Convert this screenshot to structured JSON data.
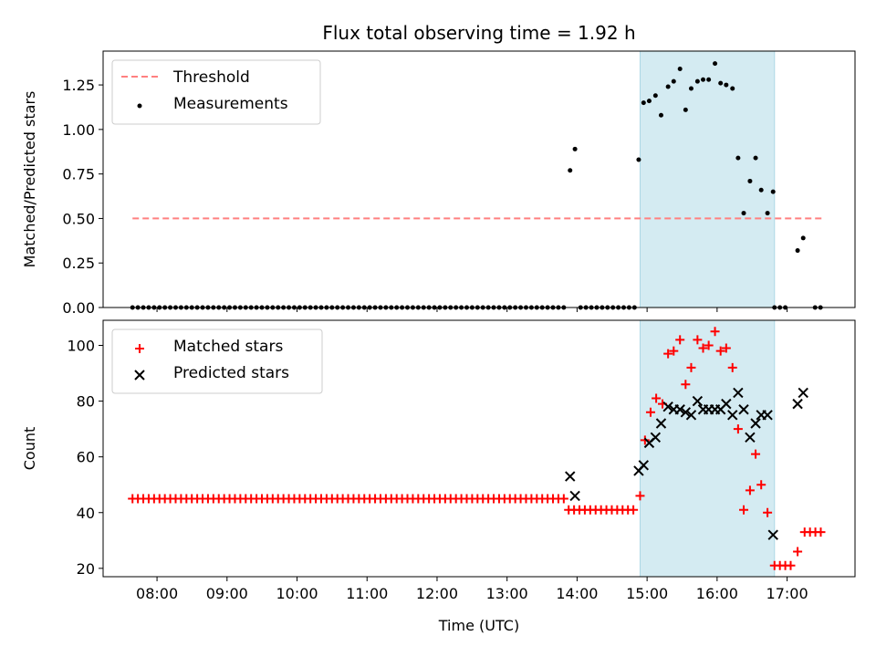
{
  "chart_data": {
    "title": "Flux total observing time = 1.92 h",
    "xlabel": "Time (UTC)",
    "x_unit": "hours UTC",
    "xlim": [
      7.23,
      17.97
    ],
    "x_ticks": [
      8,
      9,
      10,
      11,
      12,
      13,
      14,
      15,
      16,
      17
    ],
    "x_tick_labels": [
      "08:00",
      "09:00",
      "10:00",
      "11:00",
      "12:00",
      "13:00",
      "14:00",
      "15:00",
      "16:00",
      "17:00"
    ],
    "highlight_span": [
      14.9,
      16.82
    ],
    "highlight_color": "#add8e6",
    "panels": [
      {
        "type": "scatter",
        "ylabel": "Matched/Predicted stars",
        "ylim": [
          0,
          1.44
        ],
        "y_ticks": [
          0,
          0.25,
          0.5,
          0.75,
          1.0,
          1.25
        ],
        "y_tick_labels": [
          "0.00",
          "0.25",
          "0.50",
          "0.75",
          "1.00",
          "1.25"
        ],
        "legend_position": "upper-left",
        "threshold": {
          "name": "Threshold",
          "value": 0.5,
          "x_range": [
            7.65,
            17.5
          ],
          "color": "#ff8080",
          "style": "dashed"
        },
        "series": [
          {
            "name": "Measurements",
            "marker": "dot",
            "color": "#000000",
            "zero_segments": [
              [
                7.65,
                13.83
              ],
              [
                14.05,
                14.82
              ],
              [
                16.82,
                17.05
              ],
              [
                17.4,
                17.5
              ]
            ],
            "points": [
              [
                13.9,
                0.77
              ],
              [
                13.97,
                0.89
              ],
              [
                14.88,
                0.83
              ],
              [
                14.95,
                1.15
              ],
              [
                15.03,
                1.16
              ],
              [
                15.12,
                1.19
              ],
              [
                15.2,
                1.08
              ],
              [
                15.3,
                1.24
              ],
              [
                15.38,
                1.27
              ],
              [
                15.47,
                1.34
              ],
              [
                15.55,
                1.11
              ],
              [
                15.63,
                1.23
              ],
              [
                15.72,
                1.27
              ],
              [
                15.8,
                1.28
              ],
              [
                15.88,
                1.28
              ],
              [
                15.97,
                1.37
              ],
              [
                16.05,
                1.26
              ],
              [
                16.13,
                1.25
              ],
              [
                16.22,
                1.23
              ],
              [
                16.3,
                0.84
              ],
              [
                16.38,
                0.53
              ],
              [
                16.47,
                0.71
              ],
              [
                16.55,
                0.84
              ],
              [
                16.63,
                0.66
              ],
              [
                16.72,
                0.53
              ],
              [
                16.8,
                0.65
              ],
              [
                17.15,
                0.32
              ],
              [
                17.23,
                0.39
              ]
            ]
          }
        ]
      },
      {
        "type": "scatter",
        "ylabel": "Count",
        "ylim": [
          17,
          109
        ],
        "y_ticks": [
          20,
          40,
          60,
          80,
          100
        ],
        "y_tick_labels": [
          "20",
          "40",
          "60",
          "80",
          "100"
        ],
        "legend_position": "upper-left",
        "series": [
          {
            "name": "Matched stars",
            "marker": "plus",
            "color": "#ff0000",
            "constant_runs": [
              [
                7.65,
                13.83,
                45
              ],
              [
                13.88,
                14.82,
                41
              ],
              [
                16.82,
                17.08,
                21
              ],
              [
                17.25,
                17.5,
                33
              ]
            ],
            "points": [
              [
                14.9,
                46
              ],
              [
                14.97,
                66
              ],
              [
                15.05,
                76
              ],
              [
                15.13,
                81
              ],
              [
                15.22,
                79
              ],
              [
                15.3,
                97
              ],
              [
                15.38,
                98
              ],
              [
                15.47,
                102
              ],
              [
                15.55,
                86
              ],
              [
                15.63,
                92
              ],
              [
                15.72,
                102
              ],
              [
                15.8,
                99
              ],
              [
                15.88,
                100
              ],
              [
                15.97,
                105
              ],
              [
                16.05,
                98
              ],
              [
                16.13,
                99
              ],
              [
                16.22,
                92
              ],
              [
                16.3,
                70
              ],
              [
                16.38,
                41
              ],
              [
                16.47,
                48
              ],
              [
                16.55,
                61
              ],
              [
                16.63,
                50
              ],
              [
                16.72,
                40
              ],
              [
                17.15,
                26
              ]
            ]
          },
          {
            "name": "Predicted stars",
            "marker": "x",
            "color": "#000000",
            "points": [
              [
                13.9,
                53
              ],
              [
                13.97,
                46
              ],
              [
                14.88,
                55
              ],
              [
                14.95,
                57
              ],
              [
                15.03,
                65
              ],
              [
                15.12,
                67
              ],
              [
                15.2,
                72
              ],
              [
                15.3,
                78
              ],
              [
                15.38,
                77
              ],
              [
                15.47,
                77
              ],
              [
                15.55,
                76
              ],
              [
                15.63,
                75
              ],
              [
                15.72,
                80
              ],
              [
                15.8,
                77
              ],
              [
                15.88,
                77
              ],
              [
                15.97,
                77
              ],
              [
                16.05,
                77
              ],
              [
                16.13,
                79
              ],
              [
                16.22,
                75
              ],
              [
                16.3,
                83
              ],
              [
                16.38,
                77
              ],
              [
                16.47,
                67
              ],
              [
                16.55,
                72
              ],
              [
                16.63,
                75
              ],
              [
                16.72,
                75
              ],
              [
                16.8,
                32
              ],
              [
                17.15,
                79
              ],
              [
                17.23,
                83
              ]
            ]
          }
        ]
      }
    ]
  }
}
